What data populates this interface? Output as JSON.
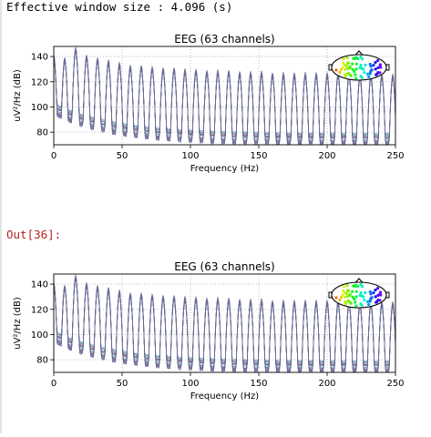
{
  "cell": {
    "stdout_text": "Effective window size : 4.096 (s)",
    "out_prompt": "Out[36]:"
  },
  "chart_data": [
    {
      "type": "line",
      "title": "EEG (63 channels)",
      "xlabel": "Frequency (Hz)",
      "ylabel": "uV²/Hz (dB)",
      "xlim": [
        0,
        250
      ],
      "ylim": [
        70,
        148
      ],
      "xticks": [
        "0",
        "50",
        "100",
        "150",
        "200",
        "250"
      ],
      "yticks": [
        "80",
        "100",
        "120",
        "140"
      ],
      "grid": true,
      "n_channels": 63,
      "peak_spacing_hz": 8,
      "peak_frequencies_hz": [
        0,
        8,
        16,
        24,
        32,
        40,
        48,
        56,
        64,
        72,
        80,
        88,
        96,
        104,
        112,
        120,
        128,
        136,
        144,
        152,
        160,
        168,
        176,
        184,
        192,
        200,
        208,
        216,
        224,
        232,
        240,
        248
      ],
      "peak_values_db": [
        140,
        138,
        146,
        140,
        138,
        136,
        134,
        132,
        132,
        131,
        130,
        130,
        129,
        129,
        128,
        128,
        128,
        127,
        127,
        127,
        126,
        126,
        126,
        126,
        126,
        126,
        126,
        126,
        125,
        125,
        125,
        125
      ],
      "baseline_db_start": 102,
      "baseline_db_end": 78,
      "sensor_inset": "head-topomap-top-right",
      "line_color": "#6a6a9a"
    },
    {
      "type": "line",
      "title": "EEG (63 channels)",
      "xlabel": "Frequency (Hz)",
      "ylabel": "uV²/Hz (dB)",
      "xlim": [
        0,
        250
      ],
      "ylim": [
        70,
        148
      ],
      "xticks": [
        "0",
        "50",
        "100",
        "150",
        "200",
        "250"
      ],
      "yticks": [
        "80",
        "100",
        "120",
        "140"
      ],
      "grid": true,
      "n_channels": 63,
      "peak_spacing_hz": 8,
      "peak_frequencies_hz": [
        0,
        8,
        16,
        24,
        32,
        40,
        48,
        56,
        64,
        72,
        80,
        88,
        96,
        104,
        112,
        120,
        128,
        136,
        144,
        152,
        160,
        168,
        176,
        184,
        192,
        200,
        208,
        216,
        224,
        232,
        240,
        248
      ],
      "peak_values_db": [
        140,
        138,
        146,
        140,
        138,
        136,
        134,
        132,
        132,
        131,
        130,
        130,
        129,
        129,
        128,
        128,
        128,
        127,
        127,
        127,
        126,
        126,
        126,
        126,
        126,
        126,
        126,
        126,
        125,
        125,
        125,
        125
      ],
      "baseline_db_start": 102,
      "baseline_db_end": 78,
      "sensor_inset": "head-topomap-top-right",
      "line_color": "#6a6a9a"
    }
  ]
}
